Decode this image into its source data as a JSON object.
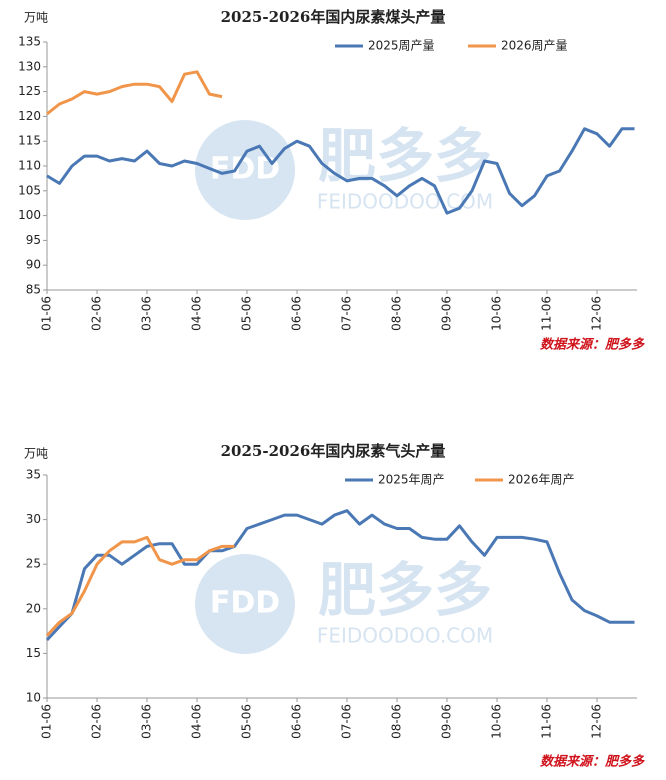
{
  "watermark": {
    "logo": "FDD",
    "name": "肥多多",
    "site": "FEIDOODOO.COM"
  },
  "chart_data": [
    {
      "type": "line",
      "title": "2025-2026年国内尿素煤头产量",
      "y_unit": "万吨",
      "source": "数据来源：肥多多",
      "categories": [
        "01-06",
        null,
        null,
        null,
        "02-06",
        null,
        null,
        null,
        "03-06",
        null,
        null,
        null,
        "04-06",
        null,
        null,
        null,
        "05-06",
        null,
        null,
        null,
        "06-06",
        null,
        null,
        null,
        "07-06",
        null,
        null,
        null,
        "08-06",
        null,
        null,
        null,
        "09-06",
        null,
        null,
        null,
        "10-06",
        null,
        null,
        null,
        "11-06",
        null,
        null,
        null,
        "12-06",
        null,
        null,
        null
      ],
      "ylim": [
        85,
        135
      ],
      "yticks": [
        85,
        90,
        95,
        100,
        105,
        110,
        115,
        120,
        125,
        130,
        135
      ],
      "legend": "top-right",
      "series": [
        {
          "name": "2025周产量",
          "color": "#4a78b5",
          "values": [
            108,
            106.5,
            110,
            112,
            112,
            111,
            111.5,
            111,
            113,
            110.5,
            110,
            111,
            110.5,
            109.5,
            108.5,
            109,
            113,
            114,
            110.5,
            113.5,
            115,
            114,
            110.5,
            108.5,
            107,
            107.5,
            107.5,
            106,
            104,
            106,
            107.5,
            106,
            100.5,
            101.5,
            105,
            111,
            110.5,
            104.5,
            102,
            104,
            108,
            109,
            113,
            117.5,
            116.5,
            114,
            117.5,
            117.5
          ]
        },
        {
          "name": "2026周产量",
          "color": "#f0954a",
          "values": [
            120.5,
            122.5,
            123.5,
            125,
            124.5,
            125,
            126,
            126.5,
            126.5,
            126,
            123,
            128.5,
            129,
            124.5,
            124,
            null,
            null,
            null,
            null,
            null,
            null,
            null,
            null,
            null,
            null,
            null,
            null,
            null,
            null,
            null,
            null,
            null,
            null,
            null,
            null,
            null,
            null,
            null,
            null,
            null,
            null,
            null,
            null,
            null,
            null,
            null,
            null,
            null
          ]
        }
      ]
    },
    {
      "type": "line",
      "title": "2025-2026年国内尿素气头产量",
      "y_unit": "万吨",
      "source": "数据来源：肥多多",
      "categories": [
        "01-06",
        null,
        null,
        null,
        "02-06",
        null,
        null,
        null,
        "03-06",
        null,
        null,
        null,
        "04-06",
        null,
        null,
        null,
        "05-06",
        null,
        null,
        null,
        "06-06",
        null,
        null,
        null,
        "07-06",
        null,
        null,
        null,
        "08-06",
        null,
        null,
        null,
        "09-06",
        null,
        null,
        null,
        "10-06",
        null,
        null,
        null,
        "11-06",
        null,
        null,
        null,
        "12-06",
        null,
        null,
        null
      ],
      "ylim": [
        10,
        35
      ],
      "yticks": [
        10,
        15,
        20,
        25,
        30,
        35
      ],
      "legend": "top-right",
      "series": [
        {
          "name": "2025年周产",
          "color": "#4a78b5",
          "values": [
            16.5,
            18,
            19.5,
            24.5,
            26,
            26,
            25,
            26,
            27,
            27.3,
            27.3,
            25,
            25,
            26.5,
            26.5,
            27,
            29,
            29.5,
            30,
            30.5,
            30.5,
            30,
            29.5,
            30.5,
            31,
            29.5,
            30.5,
            29.5,
            29,
            29,
            28,
            27.8,
            27.8,
            29.3,
            27.5,
            26,
            28,
            28,
            28,
            27.8,
            27.5,
            24,
            21,
            19.8,
            19.2,
            18.5,
            18.5,
            18.5
          ]
        },
        {
          "name": "2026年周产",
          "color": "#f0954a",
          "values": [
            17,
            18.5,
            19.5,
            22,
            25,
            26.5,
            27.5,
            27.5,
            28,
            25.5,
            25,
            25.5,
            25.5,
            26.5,
            27,
            27,
            null,
            null,
            null,
            null,
            null,
            null,
            null,
            null,
            null,
            null,
            null,
            null,
            null,
            null,
            null,
            null,
            null,
            null,
            null,
            null,
            null,
            null,
            null,
            null,
            null,
            null,
            null,
            null,
            null,
            null,
            null,
            null
          ]
        }
      ]
    }
  ]
}
